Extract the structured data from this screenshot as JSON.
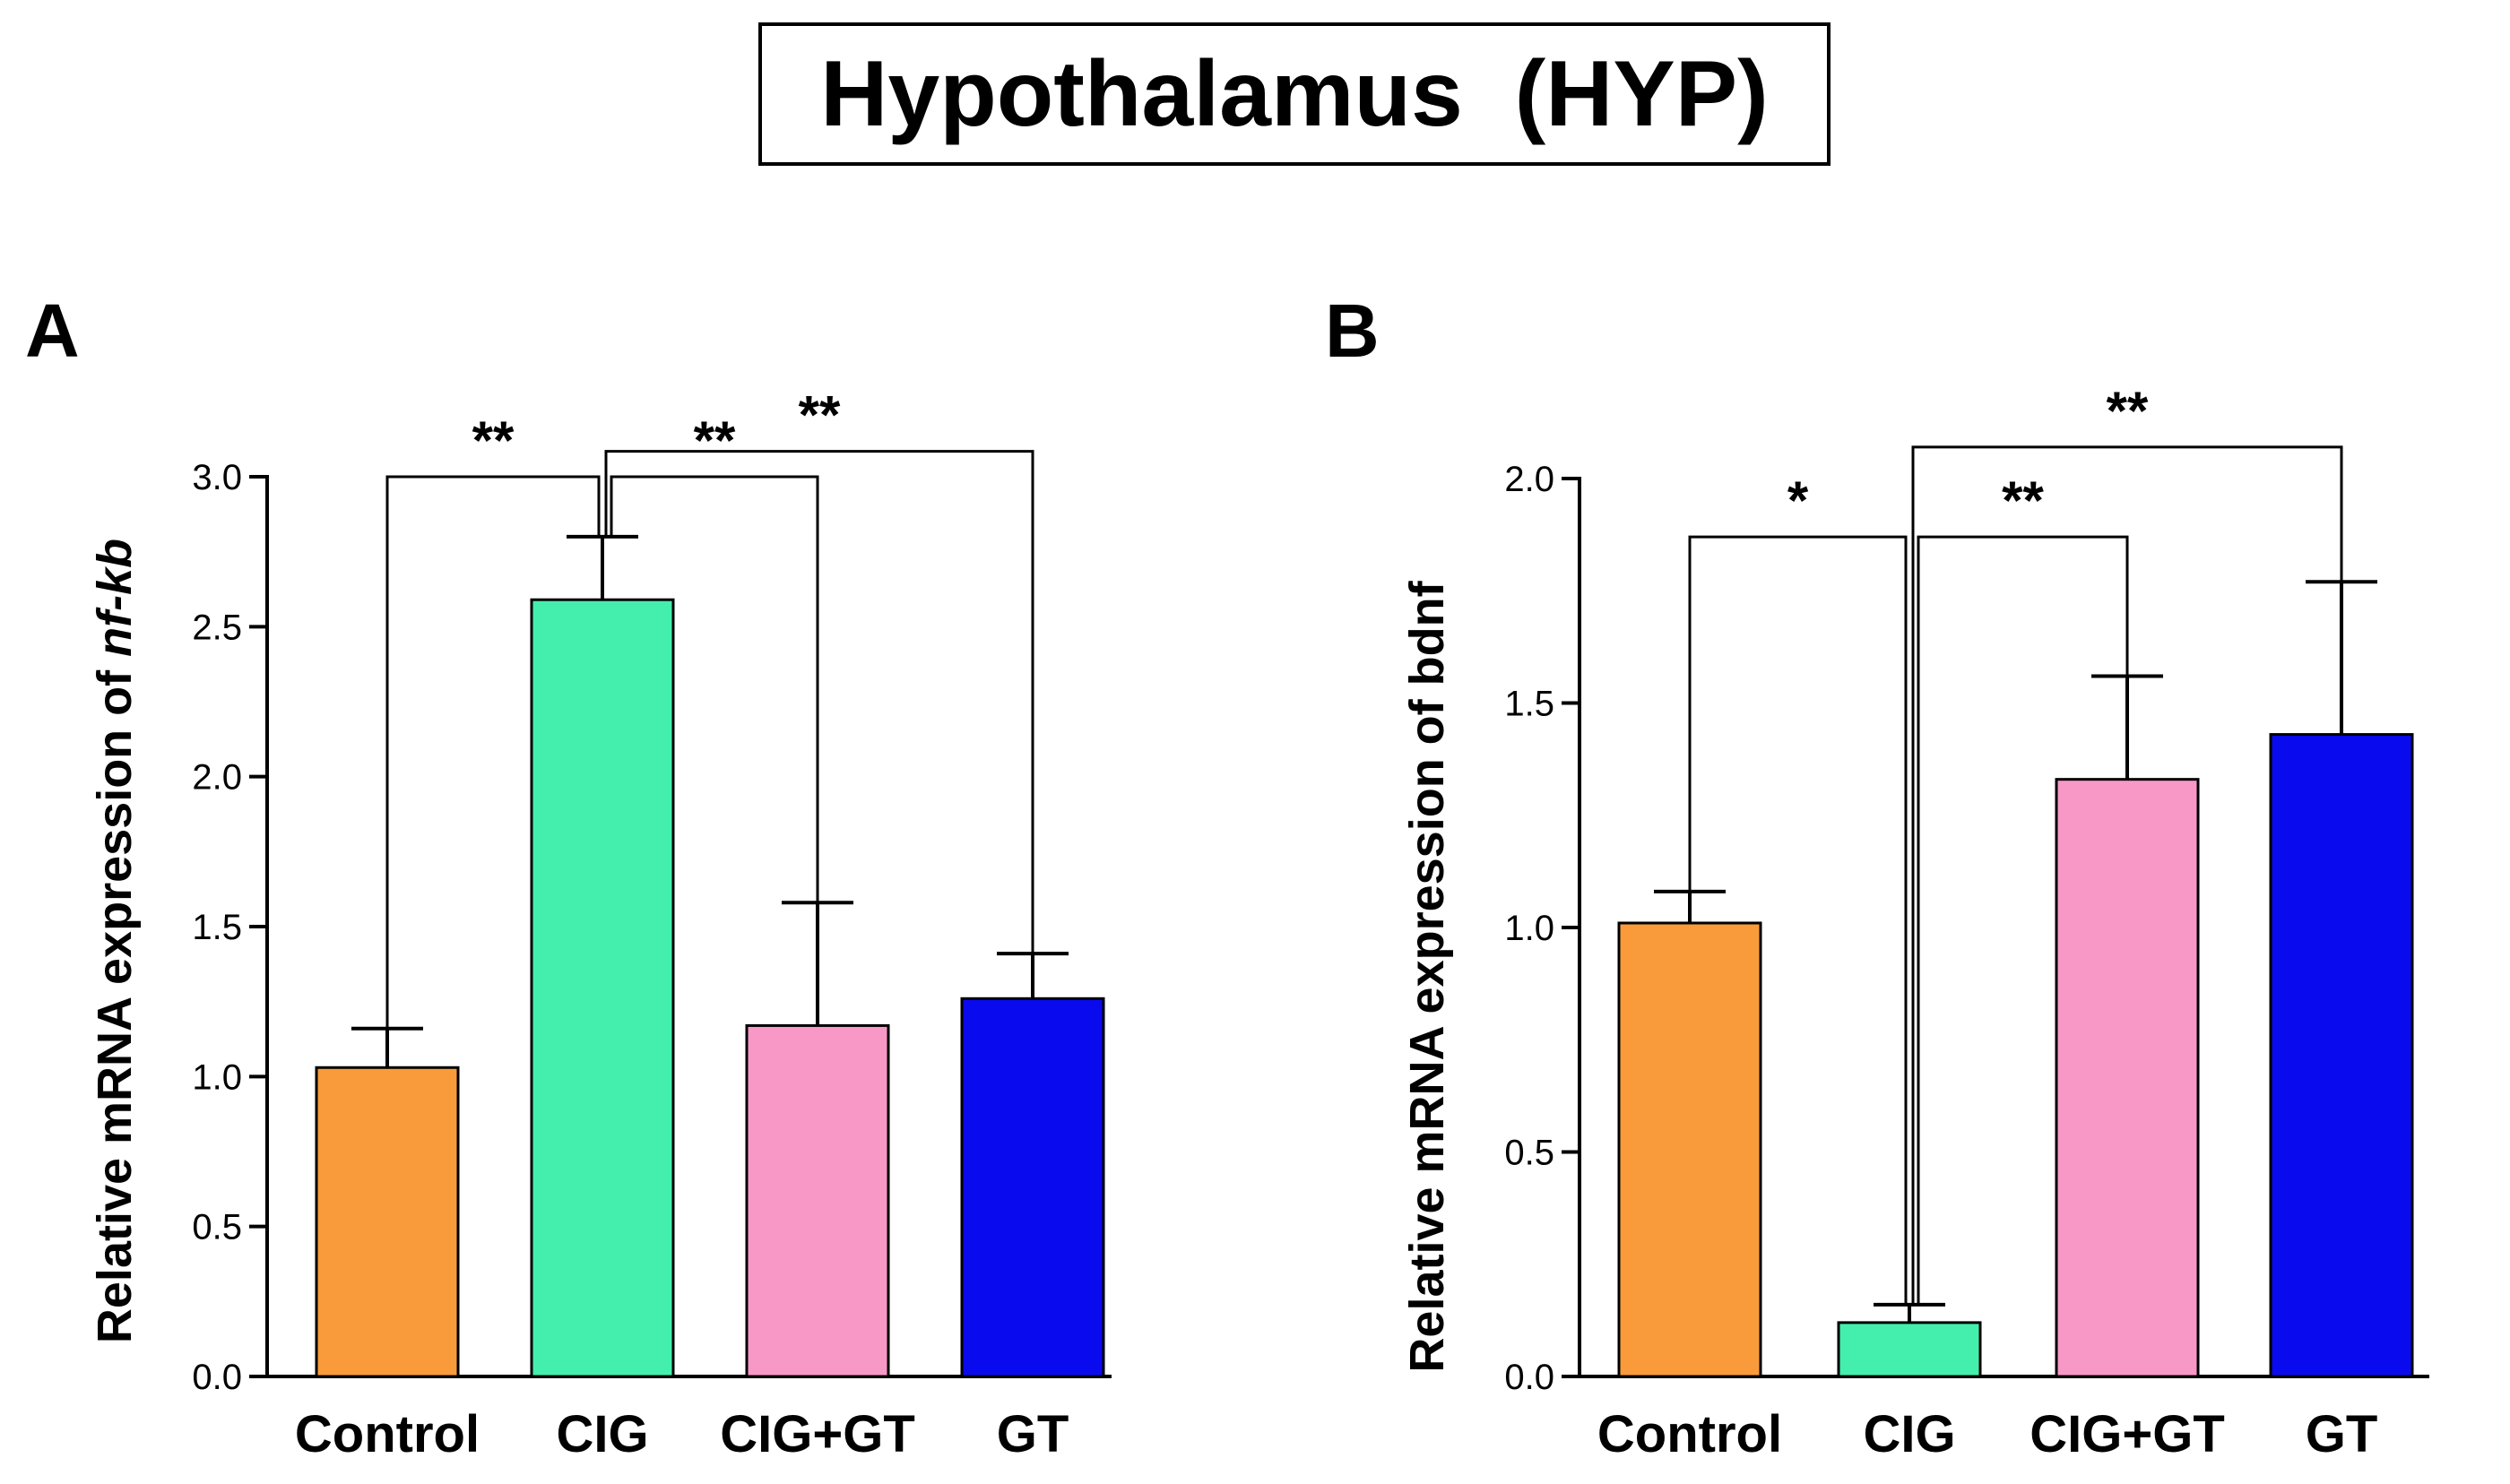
{
  "title": "Hypothalamus  (HYP)",
  "chart_data": [
    {
      "panel": "A",
      "type": "bar",
      "categories": [
        "Control",
        "CIG",
        "CIG+GT",
        "GT"
      ],
      "values": [
        1.03,
        2.59,
        1.17,
        1.26
      ],
      "errors": [
        0.13,
        0.21,
        0.41,
        0.15
      ],
      "colors": [
        "#F99B3A",
        "#44EFAD",
        "#F898C7",
        "#0A0AEE"
      ],
      "ylabel_prefix": "Relative mRNA expression of ",
      "ylabel_gene": "nf-kb",
      "ylim": [
        0,
        3.0
      ],
      "yticks": [
        "0.0",
        "0.5",
        "1.0",
        "1.5",
        "2.0",
        "2.5",
        "3.0"
      ],
      "significance": [
        {
          "from": 0,
          "to": 1,
          "label": "**",
          "level": 3.0
        },
        {
          "from": 1,
          "to": 2,
          "label": "**",
          "level": 3.0
        },
        {
          "from": 1,
          "to": 3,
          "label": "**",
          "level": 3.3
        }
      ]
    },
    {
      "panel": "B",
      "type": "bar",
      "categories": [
        "Control",
        "CIG",
        "CIG+GT",
        "GT"
      ],
      "values": [
        1.01,
        0.12,
        1.33,
        1.43
      ],
      "errors": [
        0.07,
        0.04,
        0.23,
        0.34
      ],
      "colors": [
        "#F99B3A",
        "#44EFAD",
        "#F898C7",
        "#0A0AEE"
      ],
      "ylabel_prefix": "Relative mRNA expression of bdnf",
      "ylabel_gene": "",
      "ylim": [
        0,
        2.0
      ],
      "yticks": [
        "0.0",
        "0.5",
        "1.0",
        "1.5",
        "2.0"
      ],
      "significance": [
        {
          "from": 0,
          "to": 1,
          "label": "*",
          "level": 1.87
        },
        {
          "from": 1,
          "to": 2,
          "label": "**",
          "level": 1.87
        },
        {
          "from": 1,
          "to": 3,
          "label": "**",
          "level": 2.07
        }
      ]
    }
  ]
}
